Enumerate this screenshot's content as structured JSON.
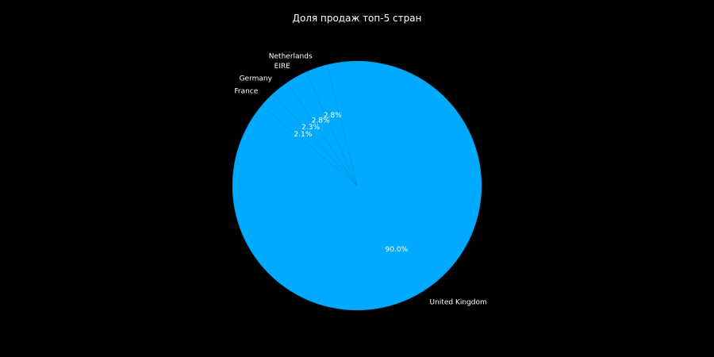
{
  "chart_data": {
    "type": "pie",
    "title": "Доля продаж топ-5 стран",
    "categories": [
      "United Kingdom",
      "Netherlands",
      "EIRE",
      "Germany",
      "France"
    ],
    "values": [
      90.0,
      2.8,
      2.8,
      2.3,
      2.1
    ],
    "value_labels": [
      "90.0%",
      "2.8%",
      "2.8%",
      "2.3%",
      "2.1%"
    ],
    "startangle": 140,
    "direction": "counterclockwise",
    "color": "#00aaff",
    "background": "#000000",
    "legend": "none"
  }
}
